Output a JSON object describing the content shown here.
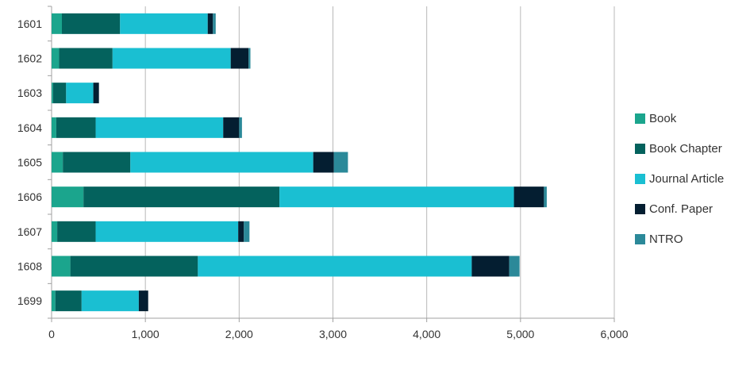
{
  "chart_data": {
    "type": "bar",
    "orientation": "horizontal",
    "stacked": true,
    "categories": [
      "1601",
      "1602",
      "1603",
      "1604",
      "1605",
      "1606",
      "1607",
      "1608",
      "1699"
    ],
    "series": [
      {
        "name": "Book",
        "color": "#1ba58d",
        "values": [
          110,
          80,
          15,
          50,
          120,
          340,
          60,
          200,
          40
        ]
      },
      {
        "name": "Book Chapter",
        "color": "#04625d",
        "values": [
          620,
          570,
          140,
          420,
          720,
          2090,
          410,
          1360,
          280
        ]
      },
      {
        "name": "Journal Article",
        "color": "#1abfd2",
        "values": [
          935,
          1260,
          290,
          1360,
          1950,
          2500,
          1520,
          2920,
          610
        ]
      },
      {
        "name": "Conf. Paper",
        "color": "#041e31",
        "values": [
          55,
          190,
          60,
          170,
          220,
          320,
          60,
          400,
          100
        ]
      },
      {
        "name": "NTRO",
        "color": "#2b8999",
        "values": [
          30,
          20,
          0,
          30,
          150,
          30,
          60,
          110,
          0
        ]
      }
    ],
    "xlim": [
      0,
      6000
    ],
    "xticks": [
      0,
      1000,
      2000,
      3000,
      4000,
      5000,
      6000
    ],
    "xtick_labels": [
      "0",
      "1,000",
      "2,000",
      "3,000",
      "4,000",
      "5,000",
      "6,000"
    ],
    "grid": true,
    "legend_position": "right",
    "title": "",
    "xlabel": "",
    "ylabel": ""
  }
}
